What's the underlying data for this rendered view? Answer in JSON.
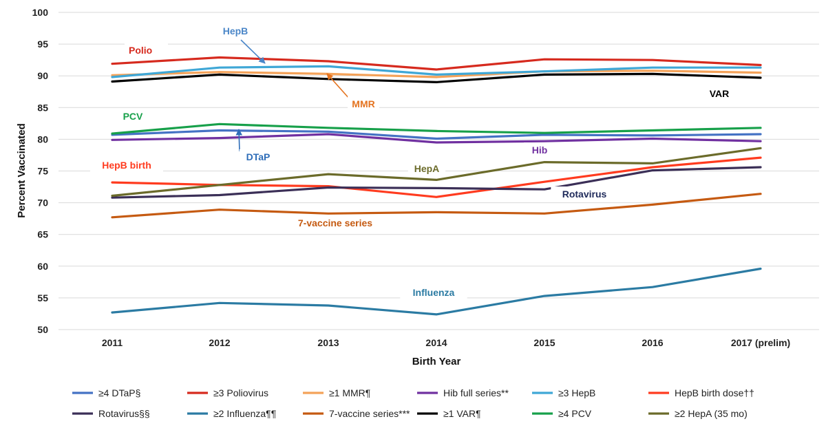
{
  "chart_data": {
    "type": "line",
    "title": "",
    "xlabel": "Birth Year",
    "ylabel": "Percent Vaccinated",
    "categories": [
      "2011",
      "2012",
      "2013",
      "2014",
      "2015",
      "2016",
      "2017 (prelim)"
    ],
    "ylim": [
      50,
      100
    ],
    "yticks": [
      50,
      55,
      60,
      65,
      70,
      75,
      80,
      85,
      90,
      95,
      100
    ],
    "grid": true,
    "legend_position": "bottom",
    "series": [
      {
        "name": "≥4 DTaP§",
        "color": "#4472C4",
        "values": [
          80.7,
          81.4,
          81.2,
          80.1,
          80.7,
          80.6,
          80.8
        ]
      },
      {
        "name": "≥3 Poliovirus",
        "color": "#D62A1E",
        "values": [
          91.9,
          92.9,
          92.3,
          91.0,
          92.6,
          92.5,
          91.7
        ]
      },
      {
        "name": "≥1 MMR¶",
        "color": "#F4A259",
        "values": [
          90.1,
          90.6,
          90.3,
          89.8,
          90.7,
          90.8,
          90.5
        ]
      },
      {
        "name": "Hib full series**",
        "color": "#7030A0",
        "values": [
          79.9,
          80.2,
          80.8,
          79.5,
          79.7,
          80.1,
          79.7
        ]
      },
      {
        "name": "≥3 HepB",
        "color": "#3FA7D6",
        "values": [
          89.8,
          91.3,
          91.5,
          90.2,
          90.7,
          91.3,
          91.3
        ]
      },
      {
        "name": "HepB birth dose††",
        "color": "#FF3B1F",
        "values": [
          73.2,
          72.8,
          72.6,
          70.9,
          73.3,
          75.6,
          77.1
        ]
      },
      {
        "name": "Rotavirus§§",
        "color": "#3B2F57",
        "values": [
          70.8,
          71.2,
          72.4,
          72.3,
          72.1,
          75.1,
          75.6
        ]
      },
      {
        "name": "≥2 Influenza¶¶",
        "color": "#2B7BA3",
        "values": [
          52.7,
          54.2,
          53.8,
          52.4,
          55.3,
          56.7,
          59.6
        ]
      },
      {
        "name": "7-vaccine series***",
        "color": "#C55A11",
        "values": [
          67.7,
          68.9,
          68.3,
          68.5,
          68.3,
          69.7,
          71.4
        ]
      },
      {
        "name": "≥1 VAR¶",
        "color": "#000000",
        "values": [
          89.1,
          90.2,
          89.5,
          89.0,
          90.2,
          90.3,
          89.7
        ]
      },
      {
        "name": "≥4 PCV",
        "color": "#17A04A",
        "values": [
          80.9,
          82.4,
          81.8,
          81.3,
          81.0,
          81.4,
          81.8
        ]
      },
      {
        "name": "≥2 HepA (35 mo)",
        "color": "#6B6B2A",
        "values": [
          71.1,
          72.8,
          74.5,
          73.6,
          76.4,
          76.2,
          78.6
        ]
      }
    ],
    "annotations": [
      {
        "text": "Polio",
        "color": "#D62A1E"
      },
      {
        "text": "HepB",
        "color": "#4A86C8"
      },
      {
        "text": "MMR",
        "color": "#E4731F"
      },
      {
        "text": "VAR",
        "color": "#000000"
      },
      {
        "text": "PCV",
        "color": "#17A04A"
      },
      {
        "text": "DTaP",
        "color": "#2E6DB8"
      },
      {
        "text": "Hib",
        "color": "#7030A0"
      },
      {
        "text": "HepB birth",
        "color": "#FF3B1F"
      },
      {
        "text": "HepA",
        "color": "#6B6B2A"
      },
      {
        "text": "Rotavirus",
        "color": "#1F2A5A"
      },
      {
        "text": "7-vaccine series",
        "color": "#C55A11"
      },
      {
        "text": "Influenza",
        "color": "#2B7BA3"
      }
    ]
  }
}
